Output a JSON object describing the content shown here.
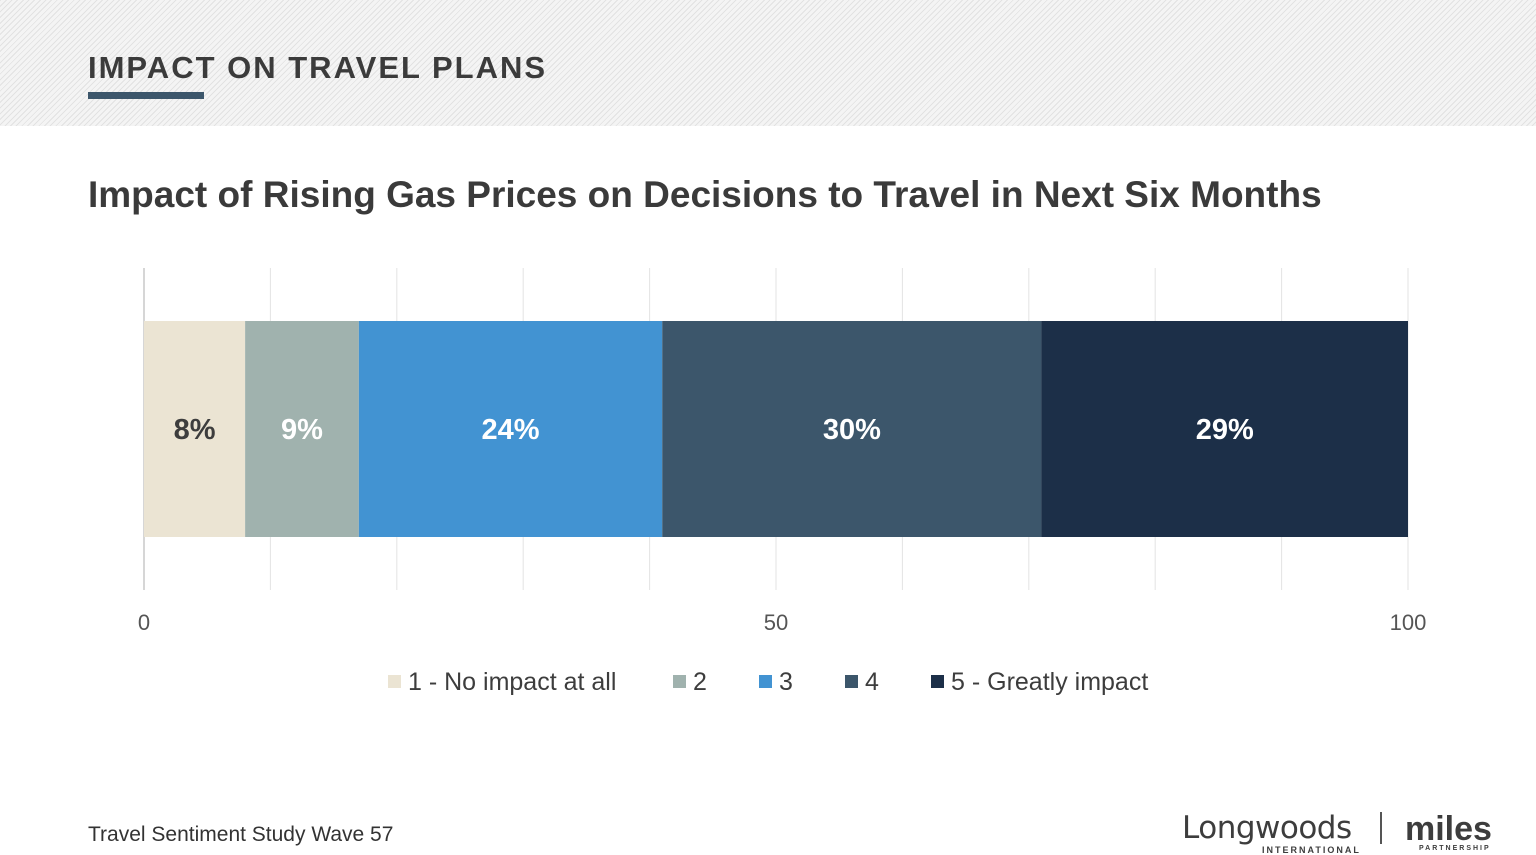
{
  "header": {
    "section_title": "IMPACT ON TRAVEL PLANS"
  },
  "chart_title": "Impact of Rising Gas Prices on Decisions to Travel in Next Six Months",
  "chart_data": {
    "type": "bar",
    "orientation": "horizontal-stacked",
    "title": "Impact of Rising Gas Prices on Decisions to Travel in Next Six Months",
    "xlim": [
      0,
      100
    ],
    "x_ticks": [
      "0",
      "50",
      "100"
    ],
    "grid": true,
    "legend_position": "bottom",
    "series": [
      {
        "name": "1 - No impact at all",
        "value": 8,
        "label": "8%",
        "color": "#ebe4d3",
        "label_color": "#3d3d3d"
      },
      {
        "name": "2",
        "value": 9,
        "label": "9%",
        "color": "#a0b2ae",
        "label_color": "#ffffff"
      },
      {
        "name": "3",
        "value": 24,
        "label": "24%",
        "color": "#4293d2",
        "label_color": "#ffffff"
      },
      {
        "name": "4",
        "value": 30,
        "label": "30%",
        "color": "#3c566b",
        "label_color": "#ffffff"
      },
      {
        "name": "5 - Greatly impact",
        "value": 29,
        "label": "29%",
        "color": "#1c2f48",
        "label_color": "#ffffff"
      }
    ]
  },
  "footer": {
    "study": "Travel Sentiment Study Wave 57",
    "logo_longwoods": "Longwoods",
    "logo_longwoods_sub": "INTERNATIONAL",
    "logo_miles": "miles",
    "logo_miles_sub": "PARTNERSHIP"
  }
}
